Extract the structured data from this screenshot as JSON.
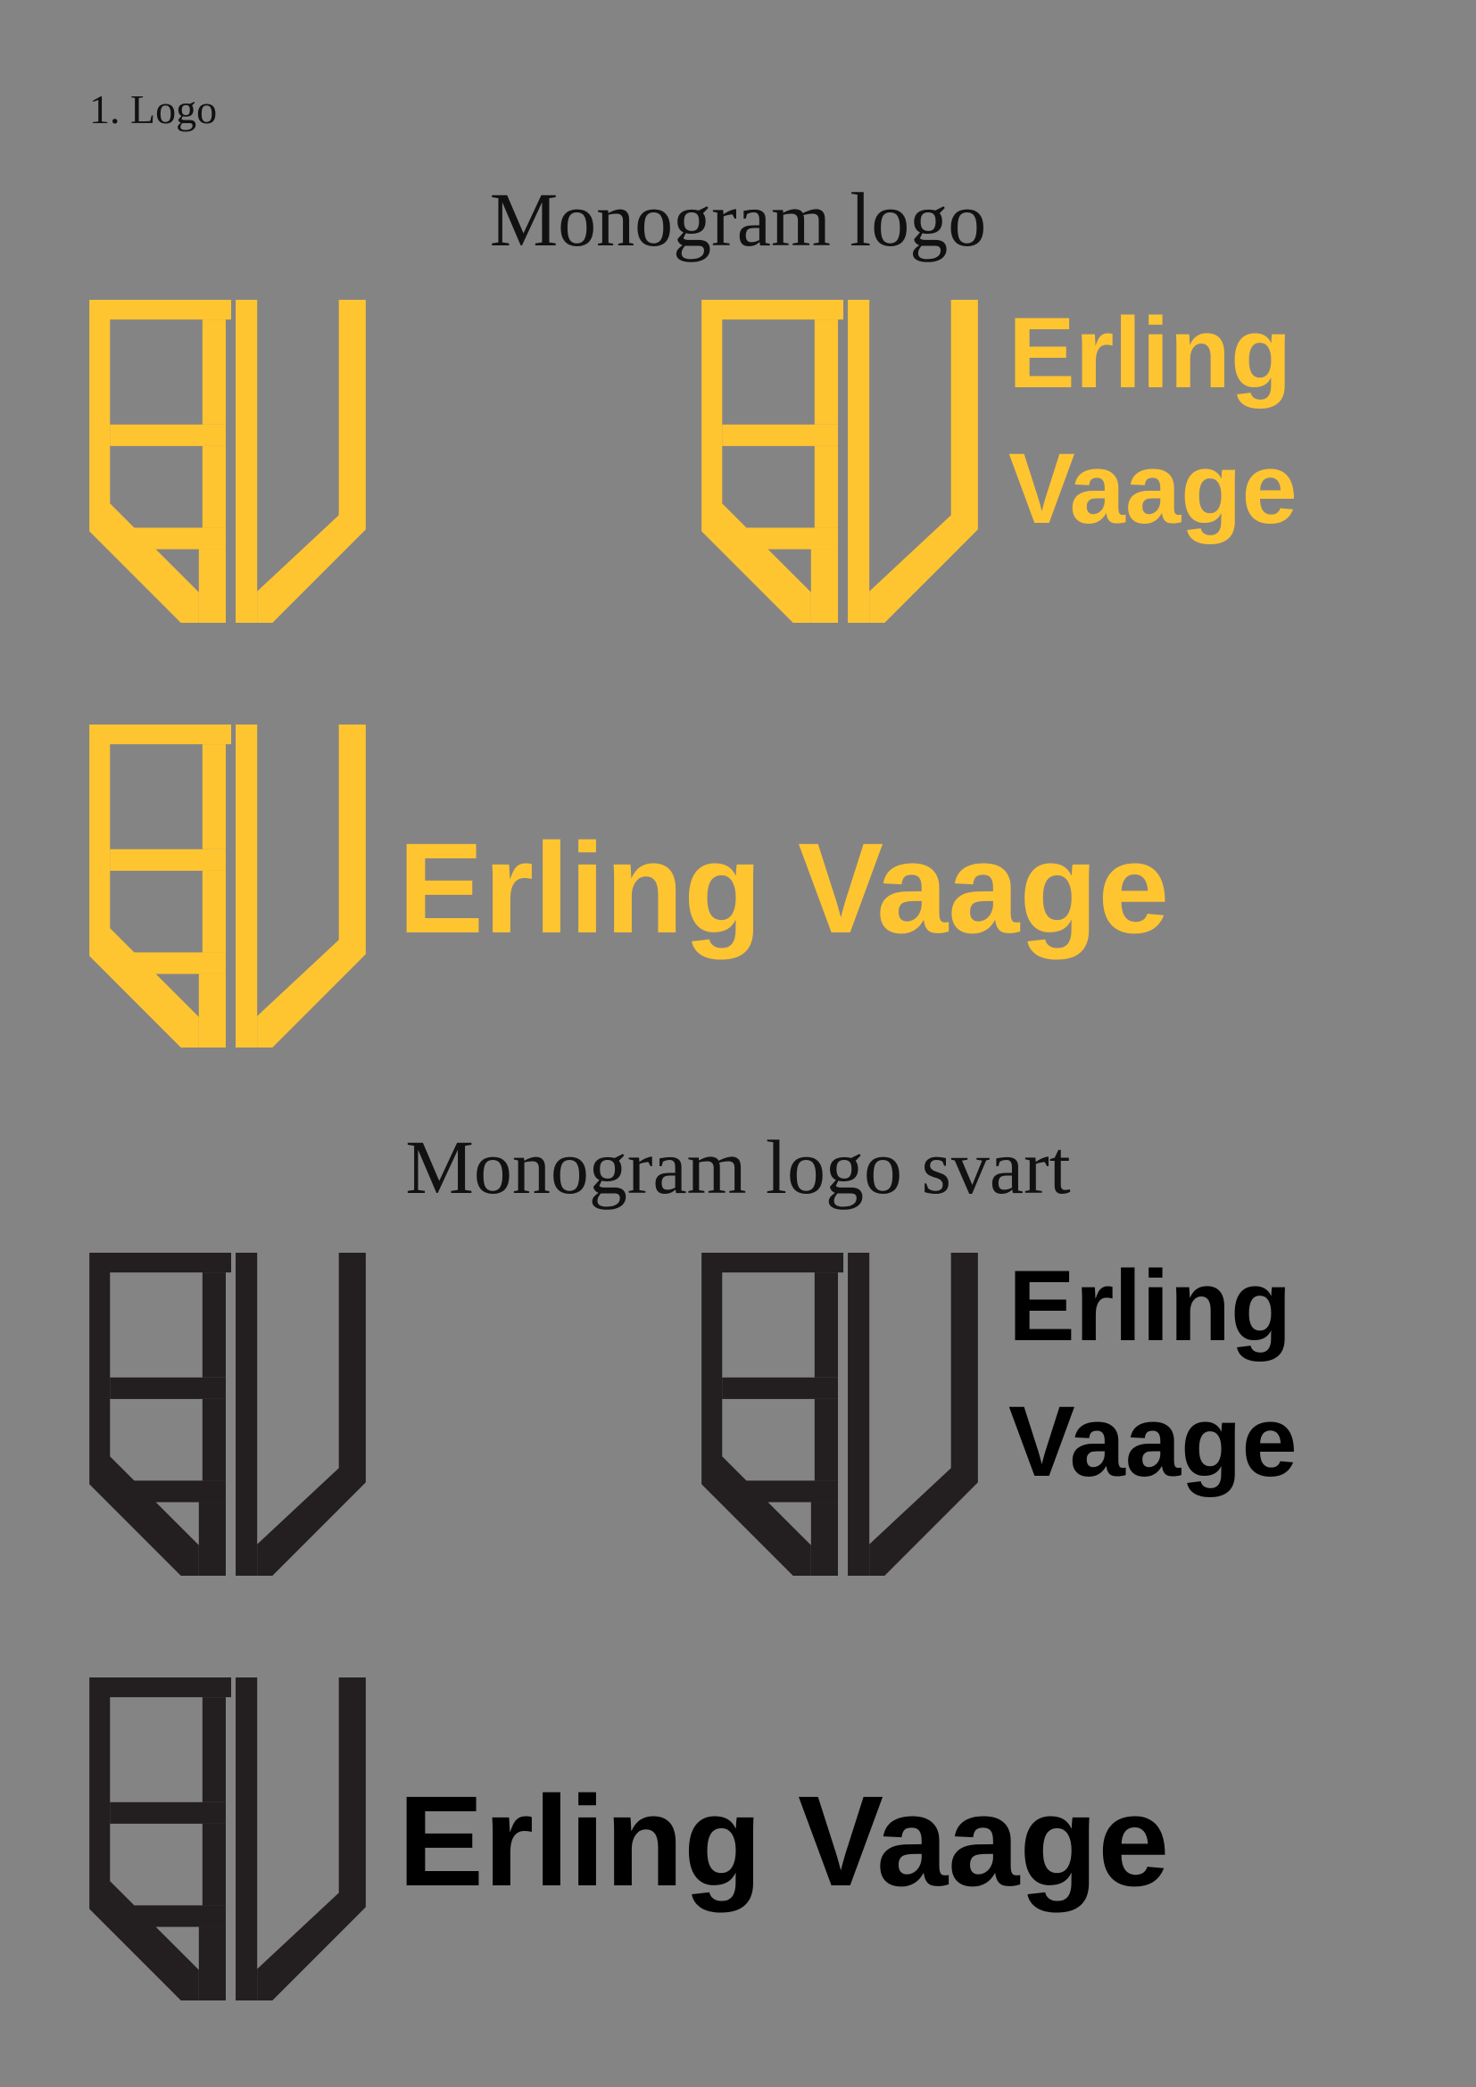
{
  "section_label": "1. Logo",
  "headings": {
    "color": "Monogram logo",
    "black": "Monogram logo svart"
  },
  "brand": {
    "first": "Erling",
    "last": "Vaage",
    "full": "Erling Vaage"
  },
  "colors": {
    "background": "#858485",
    "accent": "#FEC530",
    "ink": "#231F20"
  },
  "icons": {
    "monogram": "ev-monogram-icon"
  }
}
